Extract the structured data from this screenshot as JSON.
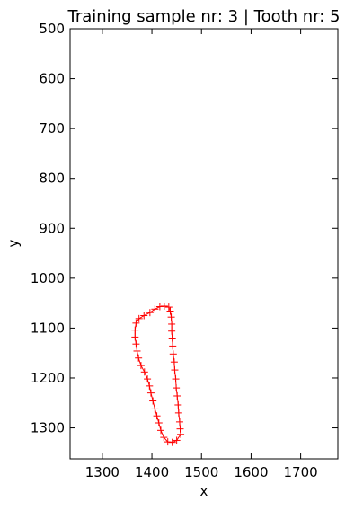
{
  "chart_data": {
    "type": "line",
    "title": "Training sample nr: 3 | Tooth nr: 5",
    "xlabel": "x",
    "ylabel": "y",
    "xlim": [
      1235,
      1775
    ],
    "ylim": [
      1362,
      500
    ],
    "y_inverted": true,
    "x_ticks": [
      1300,
      1400,
      1500,
      1600,
      1700
    ],
    "x_tick_labels": [
      "1300",
      "1400",
      "1500",
      "1600",
      "1700"
    ],
    "y_ticks": [
      500,
      600,
      700,
      800,
      900,
      1000,
      1100,
      1200,
      1300
    ],
    "y_tick_labels": [
      "500",
      "600",
      "700",
      "800",
      "900",
      "1000",
      "1100",
      "1200",
      "1300"
    ],
    "grid": false,
    "series": [
      {
        "color": "#ff0000",
        "marker": "+",
        "closed": true,
        "points": [
          [
            1416,
            1057
          ],
          [
            1425,
            1056
          ],
          [
            1434,
            1058
          ],
          [
            1437,
            1066
          ],
          [
            1439,
            1078
          ],
          [
            1440,
            1092
          ],
          [
            1440,
            1106
          ],
          [
            1441,
            1120
          ],
          [
            1442,
            1136
          ],
          [
            1443,
            1152
          ],
          [
            1445,
            1168
          ],
          [
            1446,
            1184
          ],
          [
            1448,
            1202
          ],
          [
            1449,
            1220
          ],
          [
            1451,
            1236
          ],
          [
            1453,
            1254
          ],
          [
            1454,
            1270
          ],
          [
            1456,
            1288
          ],
          [
            1457,
            1302
          ],
          [
            1458,
            1313
          ],
          [
            1450,
            1325
          ],
          [
            1441,
            1329
          ],
          [
            1432,
            1328
          ],
          [
            1424,
            1319
          ],
          [
            1418,
            1305
          ],
          [
            1414,
            1290
          ],
          [
            1410,
            1276
          ],
          [
            1406,
            1262
          ],
          [
            1402,
            1246
          ],
          [
            1398,
            1230
          ],
          [
            1395,
            1216
          ],
          [
            1391,
            1202
          ],
          [
            1385,
            1188
          ],
          [
            1378,
            1175
          ],
          [
            1373,
            1160
          ],
          [
            1370,
            1146
          ],
          [
            1368,
            1132
          ],
          [
            1366,
            1118
          ],
          [
            1366,
            1104
          ],
          [
            1368,
            1090
          ],
          [
            1374,
            1081
          ],
          [
            1384,
            1075
          ],
          [
            1396,
            1069
          ],
          [
            1406,
            1062
          ]
        ]
      }
    ]
  }
}
